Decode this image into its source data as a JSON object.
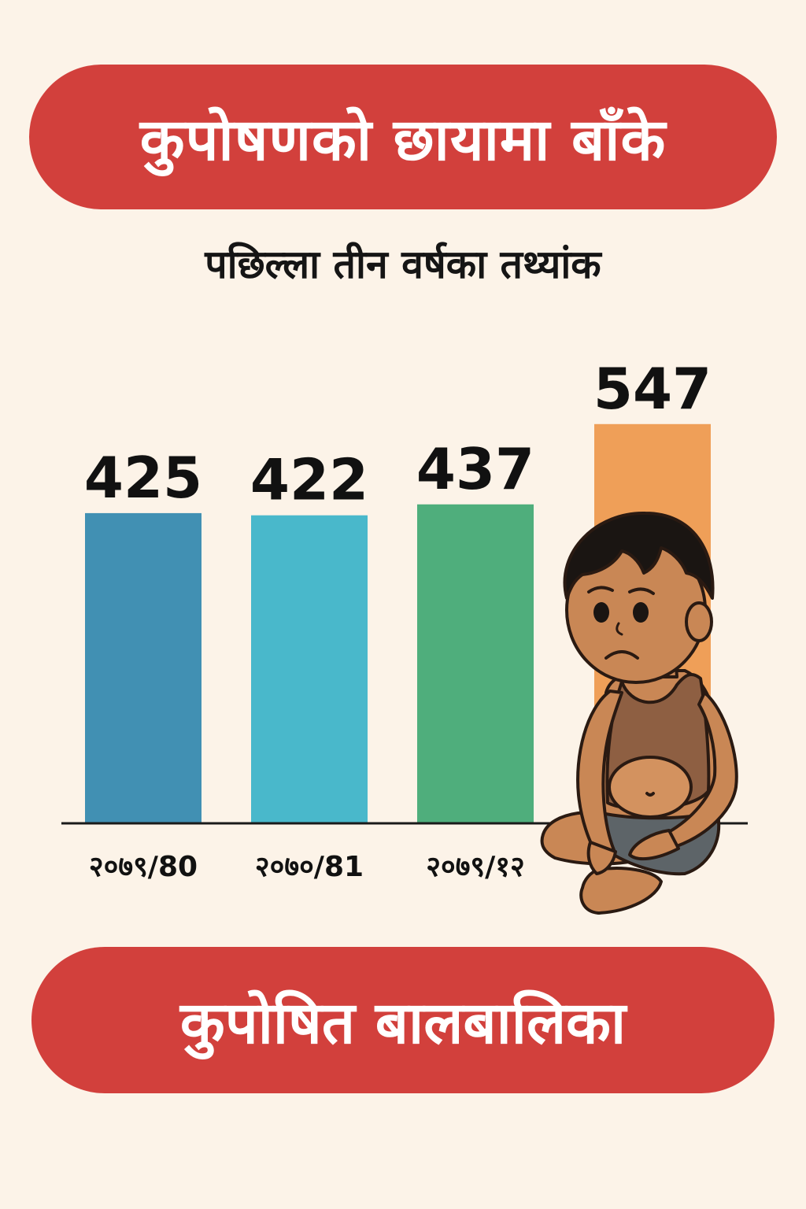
{
  "header": {
    "title": "कुपोषणको छायामा बाँके",
    "subtitle": "पछिल्ला तीन वर्षका तथ्यांक"
  },
  "footer": {
    "label": "कुपोषित बालबालिका"
  },
  "colors": {
    "banner": "#d2403c",
    "background": "#fcf3e8",
    "bars": [
      "#4190b3",
      "#49b8cb",
      "#4fae7c",
      "#ef9f58"
    ]
  },
  "illustration": {
    "name": "malnourished-child-sitting-icon"
  },
  "chart_data": {
    "type": "bar",
    "categories": [
      "२०७९/80",
      "२०७०/81",
      "२०७९/१२",
      ""
    ],
    "values": [
      425,
      422,
      437,
      547
    ],
    "value_labels": [
      "425",
      "422",
      "437",
      "547"
    ],
    "title": "",
    "xlabel": "",
    "ylabel": "",
    "ylim": [
      0,
      550
    ],
    "grid": false,
    "legend": "none"
  }
}
